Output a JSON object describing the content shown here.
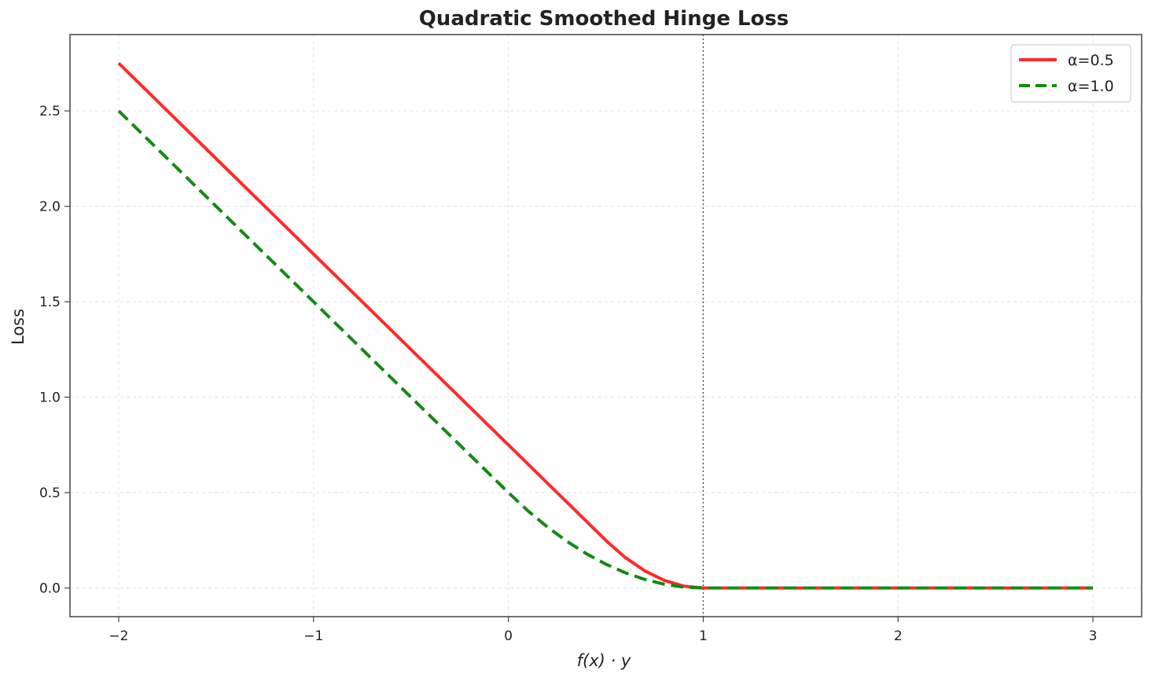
{
  "chart_data": {
    "type": "line",
    "title": "Quadratic Smoothed Hinge Loss",
    "xlabel": "f(x) · y",
    "ylabel": "Loss",
    "xlim": [
      -2.25,
      3.25
    ],
    "ylim": [
      -0.15,
      2.9
    ],
    "x_ticks": [
      -2,
      -1,
      0,
      1,
      2,
      3
    ],
    "x_tick_labels": [
      "−2",
      "−1",
      "0",
      "1",
      "2",
      "3"
    ],
    "y_ticks": [
      0.0,
      0.5,
      1.0,
      1.5,
      2.0,
      2.5
    ],
    "y_tick_labels": [
      "0.0",
      "0.5",
      "1.0",
      "1.5",
      "2.0",
      "2.5"
    ],
    "grid": true,
    "legend_position": "top-right",
    "reference_line": {
      "x": 1,
      "style": "dotted",
      "color": "#555555"
    },
    "x_range": [
      -2,
      3
    ],
    "series": [
      {
        "name": "α=0.5",
        "alpha": 0.5,
        "color": "#ff2a2a",
        "style": "solid",
        "points": [
          [
            -2,
            2.75
          ],
          [
            -1.5,
            2.25
          ],
          [
            -1,
            1.75
          ],
          [
            -0.5,
            1.25
          ],
          [
            0,
            0.75
          ],
          [
            0.5,
            0.25
          ],
          [
            0.6,
            0.16
          ],
          [
            0.7,
            0.09
          ],
          [
            0.8,
            0.04
          ],
          [
            0.9,
            0.01
          ],
          [
            1,
            0
          ],
          [
            1.5,
            0
          ],
          [
            2,
            0
          ],
          [
            2.5,
            0
          ],
          [
            3,
            0
          ]
        ]
      },
      {
        "name": "α=1.0",
        "alpha": 1.0,
        "color": "#138a13",
        "style": "dashed",
        "points": [
          [
            -2,
            2.5
          ],
          [
            -1.5,
            2.0
          ],
          [
            -1,
            1.5
          ],
          [
            -0.5,
            1.0
          ],
          [
            0,
            0.5
          ],
          [
            0.1,
            0.405
          ],
          [
            0.2,
            0.32
          ],
          [
            0.3,
            0.245
          ],
          [
            0.4,
            0.18
          ],
          [
            0.5,
            0.125
          ],
          [
            0.6,
            0.08
          ],
          [
            0.7,
            0.045
          ],
          [
            0.8,
            0.02
          ],
          [
            0.9,
            0.005
          ],
          [
            1,
            0
          ],
          [
            1.5,
            0
          ],
          [
            2,
            0
          ],
          [
            2.5,
            0
          ],
          [
            3,
            0
          ]
        ]
      }
    ]
  },
  "colors": {
    "frame": "#444444",
    "grid": "#e2e2e2",
    "legend_border": "#cfcfcf"
  }
}
